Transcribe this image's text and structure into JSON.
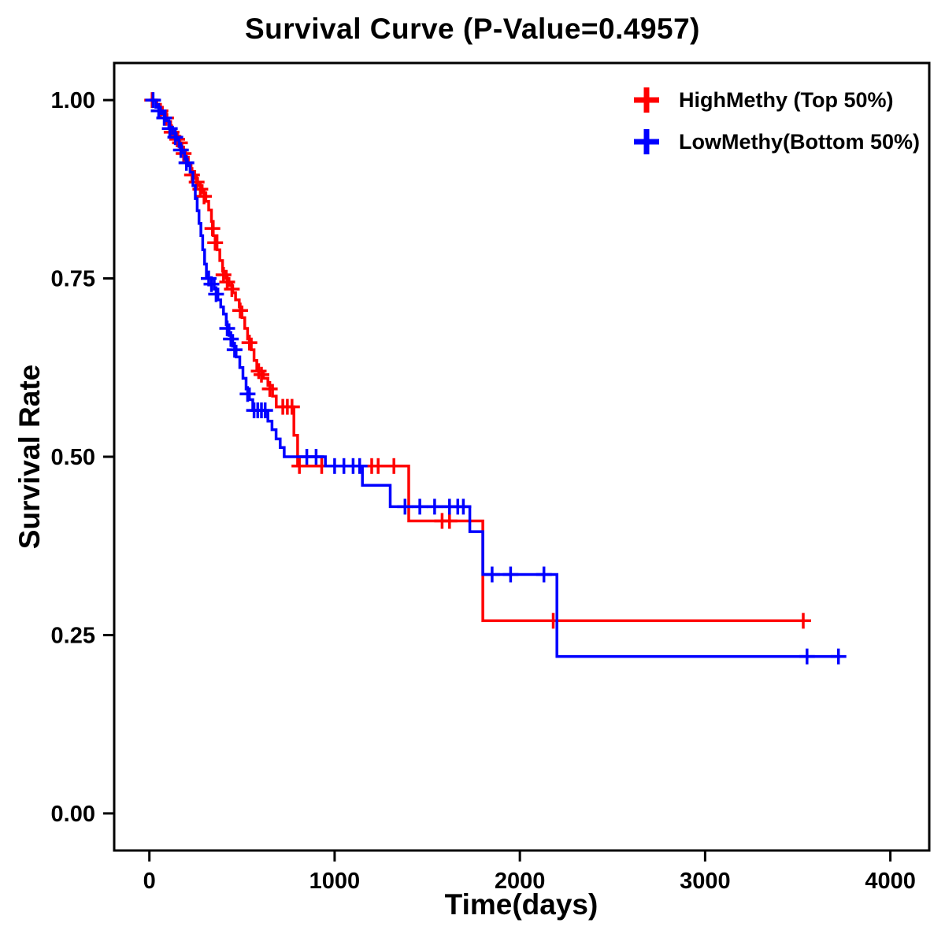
{
  "chart_data": {
    "type": "line",
    "subtype": "kaplan-meier-step",
    "title": "Survival Curve (P-Value=0.4957)",
    "p_value_text": "P-Value=0.4957",
    "xlabel": "Time(days)",
    "ylabel": "Survival Rate",
    "xlim": [
      -190,
      4210
    ],
    "ylim": [
      -0.052,
      1.052
    ],
    "xticks": [
      0,
      1000,
      2000,
      3000,
      4000
    ],
    "xtick_labels": [
      "0",
      "1000",
      "2000",
      "3000",
      "4000"
    ],
    "yticks": [
      0,
      0.25,
      0.5,
      0.75,
      1
    ],
    "ytick_labels": [
      "0.00",
      "0.25",
      "0.50",
      "0.75",
      "1.00"
    ],
    "grid": false,
    "legend_position": "top-right",
    "axis_color": "#000000",
    "series": [
      {
        "name": "HighMethy (Top 50%)",
        "color": "#FF0000",
        "end_time": 3560,
        "steps": [
          [
            0,
            1.0
          ],
          [
            40,
            0.99
          ],
          [
            70,
            0.98
          ],
          [
            95,
            0.97
          ],
          [
            115,
            0.96
          ],
          [
            135,
            0.95
          ],
          [
            155,
            0.94
          ],
          [
            175,
            0.93
          ],
          [
            195,
            0.92
          ],
          [
            210,
            0.91
          ],
          [
            225,
            0.9
          ],
          [
            245,
            0.89
          ],
          [
            260,
            0.88
          ],
          [
            285,
            0.87
          ],
          [
            305,
            0.858
          ],
          [
            320,
            0.846
          ],
          [
            335,
            0.83
          ],
          [
            345,
            0.81
          ],
          [
            365,
            0.79
          ],
          [
            380,
            0.775
          ],
          [
            395,
            0.76
          ],
          [
            415,
            0.75
          ],
          [
            430,
            0.74
          ],
          [
            450,
            0.73
          ],
          [
            465,
            0.72
          ],
          [
            485,
            0.71
          ],
          [
            500,
            0.695
          ],
          [
            515,
            0.68
          ],
          [
            530,
            0.665
          ],
          [
            550,
            0.65
          ],
          [
            565,
            0.635
          ],
          [
            580,
            0.62
          ],
          [
            615,
            0.61
          ],
          [
            640,
            0.6
          ],
          [
            665,
            0.585
          ],
          [
            685,
            0.57
          ],
          [
            780,
            0.53
          ],
          [
            800,
            0.487
          ],
          [
            1400,
            0.41
          ],
          [
            1800,
            0.27
          ]
        ],
        "censors": [
          [
            15,
            1.0
          ],
          [
            60,
            0.985
          ],
          [
            90,
            0.975
          ],
          [
            120,
            0.955
          ],
          [
            150,
            0.945
          ],
          [
            165,
            0.94
          ],
          [
            185,
            0.925
          ],
          [
            230,
            0.895
          ],
          [
            255,
            0.885
          ],
          [
            275,
            0.875
          ],
          [
            295,
            0.865
          ],
          [
            340,
            0.82
          ],
          [
            355,
            0.8
          ],
          [
            400,
            0.755
          ],
          [
            420,
            0.745
          ],
          [
            445,
            0.735
          ],
          [
            490,
            0.705
          ],
          [
            540,
            0.66
          ],
          [
            590,
            0.62
          ],
          [
            605,
            0.615
          ],
          [
            650,
            0.595
          ],
          [
            720,
            0.57
          ],
          [
            745,
            0.57
          ],
          [
            770,
            0.57
          ],
          [
            810,
            0.487
          ],
          [
            930,
            0.487
          ],
          [
            1200,
            0.487
          ],
          [
            1235,
            0.487
          ],
          [
            1320,
            0.487
          ],
          [
            1580,
            0.41
          ],
          [
            1620,
            0.41
          ],
          [
            2180,
            0.27
          ],
          [
            3530,
            0.27
          ]
        ]
      },
      {
        "name": "LowMethy(Bottom 50%)",
        "color": "#0000FF",
        "end_time": 3730,
        "steps": [
          [
            0,
            1.0
          ],
          [
            35,
            0.99
          ],
          [
            60,
            0.981
          ],
          [
            85,
            0.971
          ],
          [
            105,
            0.962
          ],
          [
            125,
            0.953
          ],
          [
            145,
            0.944
          ],
          [
            160,
            0.935
          ],
          [
            175,
            0.926
          ],
          [
            190,
            0.917
          ],
          [
            205,
            0.908
          ],
          [
            220,
            0.899
          ],
          [
            235,
            0.88
          ],
          [
            248,
            0.862
          ],
          [
            258,
            0.845
          ],
          [
            268,
            0.827
          ],
          [
            278,
            0.81
          ],
          [
            288,
            0.79
          ],
          [
            298,
            0.77
          ],
          [
            308,
            0.75
          ],
          [
            350,
            0.735
          ],
          [
            370,
            0.72
          ],
          [
            385,
            0.71
          ],
          [
            400,
            0.7
          ],
          [
            415,
            0.685
          ],
          [
            430,
            0.67
          ],
          [
            450,
            0.655
          ],
          [
            468,
            0.64
          ],
          [
            488,
            0.625
          ],
          [
            505,
            0.61
          ],
          [
            522,
            0.595
          ],
          [
            540,
            0.58
          ],
          [
            558,
            0.565
          ],
          [
            640,
            0.55
          ],
          [
            662,
            0.538
          ],
          [
            684,
            0.525
          ],
          [
            706,
            0.513
          ],
          [
            728,
            0.5
          ],
          [
            950,
            0.487
          ],
          [
            1150,
            0.46
          ],
          [
            1300,
            0.43
          ],
          [
            1730,
            0.395
          ],
          [
            1800,
            0.335
          ],
          [
            2200,
            0.22
          ]
        ],
        "censors": [
          [
            20,
            1.0
          ],
          [
            50,
            0.985
          ],
          [
            80,
            0.975
          ],
          [
            110,
            0.96
          ],
          [
            140,
            0.948
          ],
          [
            170,
            0.93
          ],
          [
            200,
            0.912
          ],
          [
            320,
            0.75
          ],
          [
            335,
            0.742
          ],
          [
            360,
            0.728
          ],
          [
            420,
            0.68
          ],
          [
            440,
            0.665
          ],
          [
            460,
            0.65
          ],
          [
            530,
            0.588
          ],
          [
            565,
            0.565
          ],
          [
            585,
            0.565
          ],
          [
            605,
            0.565
          ],
          [
            625,
            0.565
          ],
          [
            850,
            0.5
          ],
          [
            900,
            0.5
          ],
          [
            1000,
            0.487
          ],
          [
            1050,
            0.487
          ],
          [
            1100,
            0.487
          ],
          [
            1135,
            0.487
          ],
          [
            1380,
            0.43
          ],
          [
            1460,
            0.43
          ],
          [
            1540,
            0.43
          ],
          [
            1620,
            0.43
          ],
          [
            1665,
            0.43
          ],
          [
            1695,
            0.43
          ],
          [
            1850,
            0.335
          ],
          [
            1950,
            0.335
          ],
          [
            2130,
            0.335
          ],
          [
            3550,
            0.22
          ],
          [
            3720,
            0.22
          ]
        ]
      }
    ]
  }
}
